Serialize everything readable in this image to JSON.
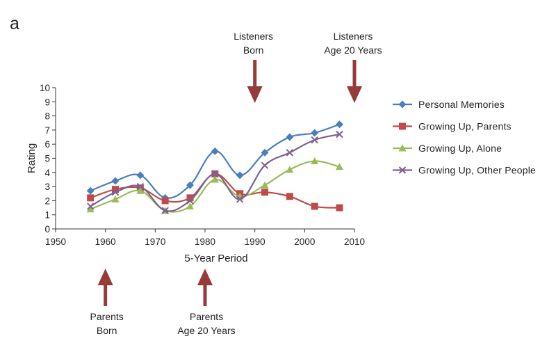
{
  "panel_label": "a",
  "chart_data": {
    "type": "line",
    "xlabel": "5-Year Period",
    "ylabel": "Rating",
    "xlim": [
      1950,
      2010
    ],
    "ylim": [
      0,
      10
    ],
    "x_ticks": [
      1950,
      1960,
      1970,
      1980,
      1990,
      2000,
      2010
    ],
    "y_ticks": [
      0,
      1,
      2,
      3,
      4,
      5,
      6,
      7,
      8,
      9,
      10
    ],
    "grid": false,
    "legend_position": "right",
    "x": [
      1957,
      1962,
      1967,
      1972,
      1977,
      1982,
      1987,
      1992,
      1997,
      2002,
      2007
    ],
    "series": [
      {
        "name": "Personal Memories",
        "marker": "diamond",
        "color": "#4a7ebb",
        "values": [
          2.7,
          3.4,
          3.8,
          2.2,
          3.1,
          5.5,
          3.8,
          5.4,
          6.5,
          6.8,
          7.4
        ]
      },
      {
        "name": "Growing Up, Parents",
        "marker": "square",
        "color": "#be4b48",
        "values": [
          2.2,
          2.8,
          2.9,
          2.0,
          2.2,
          3.9,
          2.5,
          2.6,
          2.3,
          1.6,
          1.5
        ]
      },
      {
        "name": "Growing Up, Alone",
        "marker": "triangle",
        "color": "#9bbb59",
        "values": [
          1.4,
          2.1,
          2.7,
          1.3,
          1.6,
          3.5,
          2.3,
          3.1,
          4.2,
          4.8,
          4.4
        ]
      },
      {
        "name": "Growing Up, Other People",
        "marker": "x",
        "color": "#7e6091",
        "values": [
          1.6,
          2.6,
          3.0,
          1.3,
          2.0,
          3.9,
          2.1,
          4.5,
          5.4,
          6.3,
          6.7
        ]
      }
    ],
    "annotations": [
      {
        "id": "listeners-born",
        "lines": [
          "Listeners",
          "Born"
        ],
        "year": 1990,
        "direction": "down",
        "color": "#973a3a"
      },
      {
        "id": "listeners-age-20",
        "lines": [
          "Listeners",
          "Age 20 Years"
        ],
        "year": 2010,
        "direction": "down",
        "color": "#973a3a"
      },
      {
        "id": "parents-born",
        "lines": [
          "Parents",
          "Born"
        ],
        "year": 1960,
        "direction": "up",
        "color": "#973a3a"
      },
      {
        "id": "parents-age-20",
        "lines": [
          "Parents",
          "Age 20 Years"
        ],
        "year": 1980,
        "direction": "up",
        "color": "#973a3a"
      }
    ]
  }
}
